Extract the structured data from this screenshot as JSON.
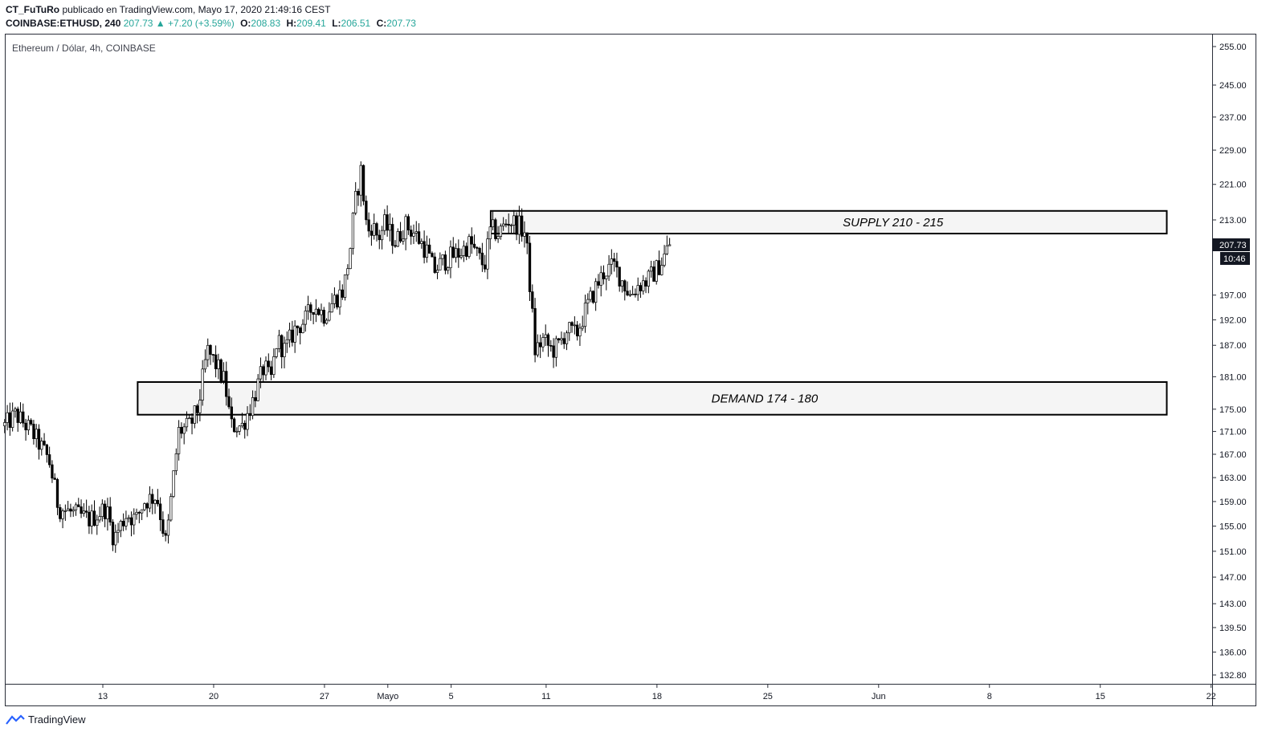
{
  "header": {
    "author": "CT_FuTuRo",
    "published_text": "publicado en TradingView.com, Mayo 17, 2020 21:49:16 CEST",
    "symbol": "COINBASE:ETHUSD, 240",
    "last": "207.73",
    "change_arrow": "▲",
    "change": "+7.20 (+3.59%)",
    "o_label": "O:",
    "o_value": "208.83",
    "h_label": "H:",
    "h_value": "209.41",
    "l_label": "L:",
    "l_value": "206.51",
    "c_label": "C:",
    "c_value": "207.73"
  },
  "chart_title": "Ethereum / Dólar, 4h, COINBASE",
  "footer": {
    "brand": "TradingView",
    "logo_icon": "tradingview-logo-icon"
  },
  "colors": {
    "up": "#26a69a",
    "candle_fill": "#ffffff",
    "candle_dark": "#000000",
    "zone_fill": "#f5f5f5",
    "axis_text": "#131722"
  },
  "chart_data": {
    "type": "candlestick",
    "title": "Ethereum / Dólar, 4h, COINBASE",
    "y_axis_side": "right",
    "ylim": [
      130.5,
      257
    ],
    "y_ticks": [
      "255.00",
      "245.00",
      "237.00",
      "229.00",
      "221.00",
      "213.00",
      "197.00",
      "192.00",
      "187.00",
      "181.00",
      "175.00",
      "171.00",
      "167.00",
      "163.00",
      "159.00",
      "155.00",
      "151.00",
      "147.00",
      "143.00",
      "139.50",
      "136.00",
      "132.80"
    ],
    "x_ticks": [
      {
        "label": "13",
        "day": 13
      },
      {
        "label": "20",
        "day": 20
      },
      {
        "label": "27",
        "day": 27
      },
      {
        "label": "Mayo",
        "day": 31
      },
      {
        "label": "5",
        "day": 35
      },
      {
        "label": "11",
        "day": 41
      },
      {
        "label": "18",
        "day": 48
      },
      {
        "label": "25",
        "day": 55
      },
      {
        "label": "Jun",
        "day": 62
      },
      {
        "label": "8",
        "day": 69
      },
      {
        "label": "15",
        "day": 76
      },
      {
        "label": "22",
        "day": 83
      }
    ],
    "price_label": "207.73",
    "countdown_label": "10:46",
    "price_path": [
      [
        6.8,
        172
      ],
      [
        7.5,
        174
      ],
      [
        8.5,
        171
      ],
      [
        9.6,
        166
      ],
      [
        10.2,
        158
      ],
      [
        11.2,
        157
      ],
      [
        12.2,
        156
      ],
      [
        13.2,
        158
      ],
      [
        13.7,
        153
      ],
      [
        14.5,
        157
      ],
      [
        15.1,
        156
      ],
      [
        15.6,
        159
      ],
      [
        16.4,
        160
      ],
      [
        17.0,
        152
      ],
      [
        17.5,
        164
      ],
      [
        17.8,
        171
      ],
      [
        18.5,
        172
      ],
      [
        19.0,
        175
      ],
      [
        19.6,
        186
      ],
      [
        20.2,
        183
      ],
      [
        20.7,
        180
      ],
      [
        21.1,
        172
      ],
      [
        21.8,
        172
      ],
      [
        22.4,
        176
      ],
      [
        23.2,
        183
      ],
      [
        23.6,
        180
      ],
      [
        24.0,
        188
      ],
      [
        24.5,
        186
      ],
      [
        25.1,
        190
      ],
      [
        25.8,
        192
      ],
      [
        26.3,
        195
      ],
      [
        27.0,
        193
      ],
      [
        27.6,
        196
      ],
      [
        28.2,
        198
      ],
      [
        28.6,
        206
      ],
      [
        28.9,
        216
      ],
      [
        29.3,
        224
      ],
      [
        29.7,
        210
      ],
      [
        30.0,
        212
      ],
      [
        30.4,
        209
      ],
      [
        30.8,
        212
      ],
      [
        31.5,
        208
      ],
      [
        32.1,
        212
      ],
      [
        32.7,
        210
      ],
      [
        33.1,
        208
      ],
      [
        33.5,
        206
      ],
      [
        33.9,
        202
      ],
      [
        34.5,
        204
      ],
      [
        35.0,
        205
      ],
      [
        35.6,
        206
      ],
      [
        36.2,
        208
      ],
      [
        36.7,
        205
      ],
      [
        37.1,
        203
      ],
      [
        37.5,
        211
      ],
      [
        38.0,
        210
      ],
      [
        38.6,
        213
      ],
      [
        39.2,
        212
      ],
      [
        39.7,
        210
      ],
      [
        40.3,
        186
      ],
      [
        40.8,
        188
      ],
      [
        41.4,
        186
      ],
      [
        41.8,
        187
      ],
      [
        42.3,
        190
      ],
      [
        42.9,
        189
      ],
      [
        43.5,
        194
      ],
      [
        44.2,
        199
      ],
      [
        44.7,
        202
      ],
      [
        45.3,
        203
      ],
      [
        45.8,
        200
      ],
      [
        46.3,
        197
      ],
      [
        46.8,
        199
      ],
      [
        47.4,
        200
      ],
      [
        47.9,
        202
      ],
      [
        48.3,
        204
      ],
      [
        48.8,
        207.73
      ]
    ],
    "zones": [
      {
        "label": "SUPPLY 210 - 215",
        "low": 210,
        "high": 215,
        "start_day": 37.5,
        "end_day": 80.2
      },
      {
        "label": "DEMAND 174 - 180",
        "low": 174,
        "high": 180,
        "start_day": 15.2,
        "end_day": 80.2
      }
    ]
  }
}
